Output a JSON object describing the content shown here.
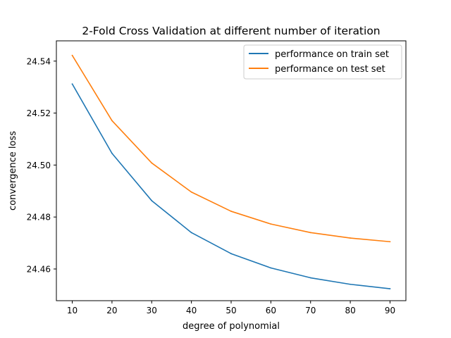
{
  "chart_data": {
    "type": "line",
    "title": "2-Fold Cross Validation at different number of iteration",
    "xlabel": "degree of polynomial",
    "ylabel": "convergence loss",
    "x": [
      10,
      20,
      30,
      40,
      50,
      60,
      70,
      80,
      90
    ],
    "xlim": [
      6,
      94
    ],
    "ylim": [
      24.4478,
      24.5478
    ],
    "xticks": [
      "10",
      "20",
      "30",
      "40",
      "50",
      "60",
      "70",
      "80",
      "90"
    ],
    "yticks": [
      "24.46",
      "24.48",
      "24.50",
      "24.52",
      "24.54"
    ],
    "grid": false,
    "legend_position": "top-right",
    "series": [
      {
        "name": "performance on train set",
        "color": "#1f77b4",
        "values": [
          24.5312,
          24.5045,
          24.4863,
          24.474,
          24.4659,
          24.4604,
          24.4566,
          24.4541,
          24.4524
        ]
      },
      {
        "name": "performance on test set",
        "color": "#ff7f0e",
        "values": [
          24.5422,
          24.5171,
          24.5008,
          24.4896,
          24.4822,
          24.4773,
          24.474,
          24.4719,
          24.4705
        ]
      }
    ]
  }
}
